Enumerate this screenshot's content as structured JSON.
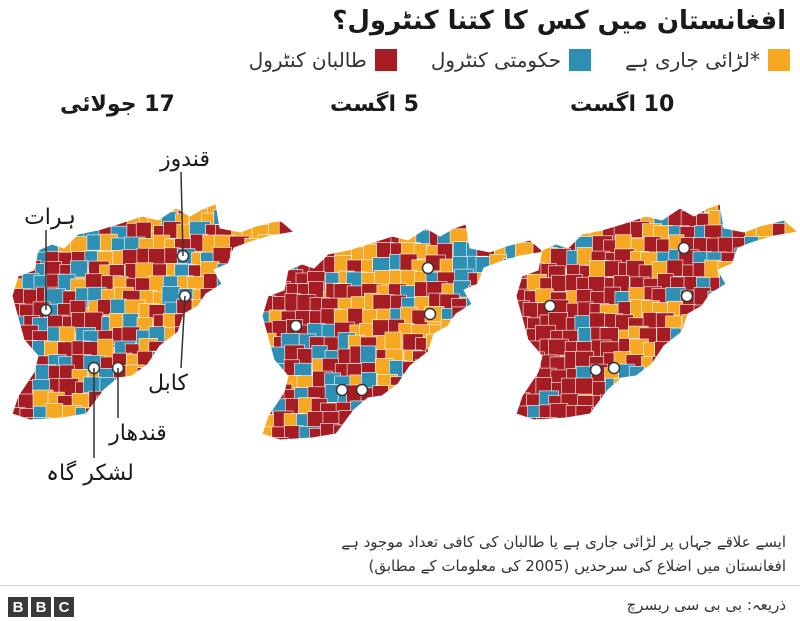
{
  "title": "افغانستان میں کس کا کتنا کنٹرول؟",
  "legend": [
    {
      "label": "*لڑائی جاری ہے",
      "color": "#f7a823"
    },
    {
      "label": "حکومتی کنٹرول",
      "color": "#2e8fb4"
    },
    {
      "label": "طالبان کنٹرول",
      "color": "#a51d22"
    }
  ],
  "maps": [
    {
      "date": "17 جولائی",
      "control_mix": {
        "contested": 0.42,
        "government": 0.22,
        "taliban": 0.36
      }
    },
    {
      "date": "5 اگست",
      "control_mix": {
        "contested": 0.4,
        "government": 0.18,
        "taliban": 0.42
      }
    },
    {
      "date": "10 اگست",
      "control_mix": {
        "contested": 0.26,
        "government": 0.14,
        "taliban": 0.6
      }
    }
  ],
  "cities": [
    "قندوز",
    "ہرات",
    "کابل",
    "قندھار",
    "لشکر گاہ"
  ],
  "footnote": {
    "line1": "ایسے علاقے جہاں پر لڑائی جاری ہے یا طالبان کی کافی تعداد موجود ہے",
    "line2": "افغانستان میں اضلاع کی سرحدیں (2005 کی معلومات کے مطابق)"
  },
  "source": "ذریعہ: بی بی سی ریسرچ",
  "bbc_logo": [
    "B",
    "B",
    "C"
  ]
}
